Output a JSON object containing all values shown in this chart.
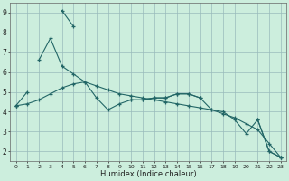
{
  "xlabel": "Humidex (Indice chaleur)",
  "background_color": "#cceedd",
  "grid_color": "#99bbbb",
  "line_color": "#226666",
  "xlim": [
    -0.5,
    23.5
  ],
  "ylim": [
    1.5,
    9.5
  ],
  "xticks": [
    0,
    1,
    2,
    3,
    4,
    5,
    6,
    7,
    8,
    9,
    10,
    11,
    12,
    13,
    14,
    15,
    16,
    17,
    18,
    19,
    20,
    21,
    22,
    23
  ],
  "yticks": [
    2,
    3,
    4,
    5,
    6,
    7,
    8,
    9
  ],
  "series": [
    {
      "x": [
        0,
        1,
        2,
        3,
        4,
        5,
        6,
        7,
        8,
        9,
        10,
        11,
        12,
        13,
        14,
        15,
        16,
        17,
        18,
        19,
        20,
        21,
        22,
        23
      ],
      "y": [
        4.3,
        5.0,
        null,
        null,
        9.1,
        8.3,
        null,
        null,
        null,
        null,
        4.6,
        4.6,
        4.7,
        4.7,
        4.9,
        4.9,
        4.7,
        null,
        null,
        null,
        null,
        3.6,
        2.0,
        1.7
      ]
    },
    {
      "x": [
        0,
        1,
        2,
        3,
        4,
        5,
        6,
        7,
        8,
        9,
        10,
        11,
        12,
        13,
        14,
        15,
        16,
        17,
        18,
        19,
        20,
        21,
        22,
        23
      ],
      "y": [
        4.3,
        null,
        6.6,
        7.7,
        6.3,
        5.9,
        5.5,
        4.7,
        4.1,
        4.4,
        4.6,
        4.6,
        4.7,
        4.7,
        4.9,
        4.9,
        4.7,
        4.1,
        4.0,
        3.6,
        2.9,
        3.6,
        2.0,
        1.7
      ]
    },
    {
      "x": [
        0,
        1,
        2,
        3,
        4,
        5,
        6,
        7,
        8,
        9,
        10,
        11,
        12,
        13,
        14,
        15,
        16,
        17,
        18,
        19,
        20,
        21,
        22,
        23
      ],
      "y": [
        4.3,
        4.4,
        4.6,
        4.9,
        5.2,
        5.4,
        5.5,
        5.3,
        5.1,
        4.9,
        4.8,
        4.7,
        4.6,
        4.5,
        4.4,
        4.3,
        4.2,
        4.1,
        3.9,
        3.7,
        3.4,
        3.1,
        2.4,
        1.7
      ]
    }
  ]
}
